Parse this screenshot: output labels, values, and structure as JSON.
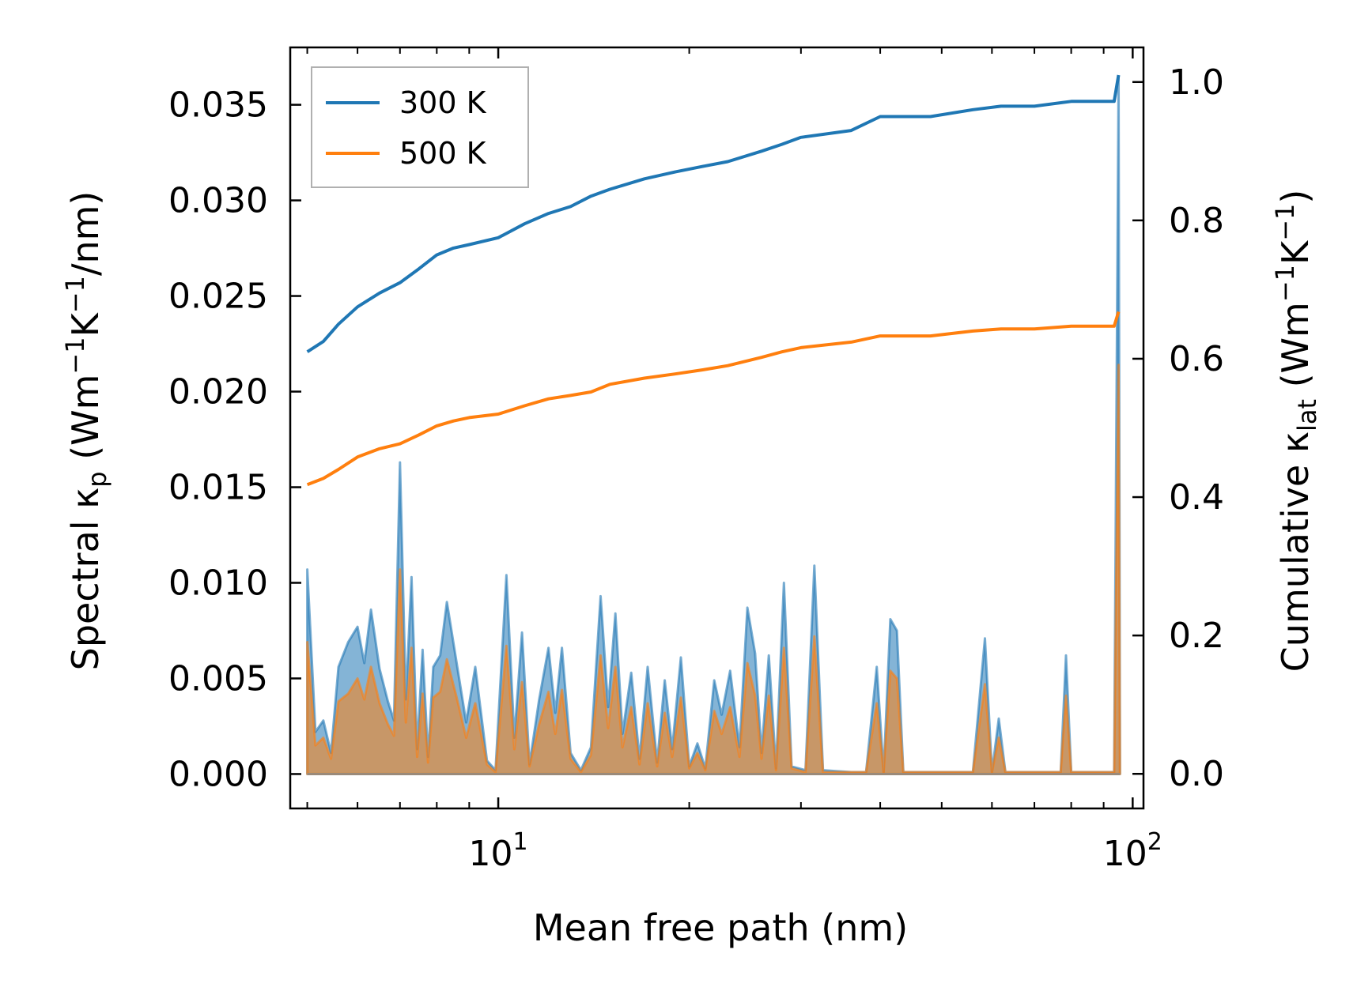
{
  "chart_data": {
    "type": "line",
    "x_scale": "log",
    "xlabel": "Mean free path (nm)",
    "ylabel_left": "Spectral κ_p (Wm^-1K^-1/nm)",
    "ylabel_right": "Cumulative κ_lat (Wm^-1K^-1)",
    "xlim": [
      4.7,
      104
    ],
    "ylim_left": [
      -0.0018,
      0.038
    ],
    "ylim_right": [
      -0.05,
      1.05
    ],
    "x_major_ticks": [
      {
        "value": 10,
        "base": "10",
        "exp": "1"
      },
      {
        "value": 100,
        "base": "10",
        "exp": "2"
      }
    ],
    "y_left_ticks": [
      {
        "value": 0.0,
        "label": "0.000"
      },
      {
        "value": 0.005,
        "label": "0.005"
      },
      {
        "value": 0.01,
        "label": "0.010"
      },
      {
        "value": 0.015,
        "label": "0.015"
      },
      {
        "value": 0.02,
        "label": "0.020"
      },
      {
        "value": 0.025,
        "label": "0.025"
      },
      {
        "value": 0.03,
        "label": "0.030"
      },
      {
        "value": 0.035,
        "label": "0.035"
      }
    ],
    "y_right_ticks": [
      {
        "value": 0.0,
        "label": "0.0"
      },
      {
        "value": 0.2,
        "label": "0.2"
      },
      {
        "value": 0.4,
        "label": "0.4"
      },
      {
        "value": 0.6,
        "label": "0.6"
      },
      {
        "value": 0.8,
        "label": "0.8"
      },
      {
        "value": 1.0,
        "label": "1.0"
      }
    ],
    "legend": {
      "position": "top-left",
      "entries": [
        "300 K",
        "500 K"
      ]
    },
    "series": [
      {
        "name": "300 K",
        "color": "#1f77b4",
        "cumulative": [
          [
            5.0,
            0.61
          ],
          [
            5.3,
            0.625
          ],
          [
            5.6,
            0.65
          ],
          [
            6.0,
            0.675
          ],
          [
            6.5,
            0.695
          ],
          [
            7.0,
            0.71
          ],
          [
            7.5,
            0.73
          ],
          [
            8.0,
            0.75
          ],
          [
            8.5,
            0.76
          ],
          [
            9.0,
            0.765
          ],
          [
            10.0,
            0.775
          ],
          [
            11.0,
            0.795
          ],
          [
            12.0,
            0.81
          ],
          [
            13.0,
            0.82
          ],
          [
            14.0,
            0.835
          ],
          [
            15.0,
            0.845
          ],
          [
            17.0,
            0.86
          ],
          [
            19.0,
            0.87
          ],
          [
            21.0,
            0.878
          ],
          [
            23.0,
            0.885
          ],
          [
            26.0,
            0.9
          ],
          [
            28.0,
            0.91
          ],
          [
            30.0,
            0.92
          ],
          [
            36.0,
            0.93
          ],
          [
            40.0,
            0.95
          ],
          [
            48.0,
            0.95
          ],
          [
            56.0,
            0.96
          ],
          [
            62.0,
            0.965
          ],
          [
            70.0,
            0.965
          ],
          [
            80.0,
            0.972
          ],
          [
            93.5,
            0.972
          ],
          [
            95.0,
            1.01
          ]
        ],
        "spectral": [
          [
            5.0,
            0.0107
          ],
          [
            5.15,
            0.0022
          ],
          [
            5.3,
            0.0028
          ],
          [
            5.45,
            0.0011
          ],
          [
            5.6,
            0.0056
          ],
          [
            5.8,
            0.0069
          ],
          [
            6.0,
            0.0077
          ],
          [
            6.15,
            0.0058
          ],
          [
            6.3,
            0.0086
          ],
          [
            6.5,
            0.0055
          ],
          [
            6.7,
            0.0038
          ],
          [
            6.85,
            0.0028
          ],
          [
            7.0,
            0.0163
          ],
          [
            7.15,
            0.0039
          ],
          [
            7.3,
            0.0103
          ],
          [
            7.45,
            0.0013
          ],
          [
            7.6,
            0.0065
          ],
          [
            7.75,
            0.0009
          ],
          [
            7.9,
            0.0056
          ],
          [
            8.1,
            0.0062
          ],
          [
            8.3,
            0.009
          ],
          [
            8.6,
            0.0058
          ],
          [
            8.9,
            0.0027
          ],
          [
            9.2,
            0.0056
          ],
          [
            9.6,
            0.0007
          ],
          [
            9.9,
            0.0002
          ],
          [
            10.3,
            0.0104
          ],
          [
            10.6,
            0.0019
          ],
          [
            10.9,
            0.0074
          ],
          [
            11.2,
            0.0005
          ],
          [
            11.6,
            0.0039
          ],
          [
            12.0,
            0.0066
          ],
          [
            12.3,
            0.0032
          ],
          [
            12.6,
            0.0066
          ],
          [
            13.0,
            0.0011
          ],
          [
            13.5,
            0.0002
          ],
          [
            14.0,
            0.0014
          ],
          [
            14.5,
            0.0093
          ],
          [
            14.9,
            0.0035
          ],
          [
            15.3,
            0.0084
          ],
          [
            15.7,
            0.0021
          ],
          [
            16.2,
            0.0053
          ],
          [
            16.7,
            0.0008
          ],
          [
            17.2,
            0.0056
          ],
          [
            17.8,
            0.0006
          ],
          [
            18.3,
            0.0049
          ],
          [
            18.8,
            0.0013
          ],
          [
            19.4,
            0.0061
          ],
          [
            20.0,
            0.0004
          ],
          [
            20.6,
            0.0016
          ],
          [
            21.2,
            0.0003
          ],
          [
            21.9,
            0.0049
          ],
          [
            22.5,
            0.0031
          ],
          [
            23.2,
            0.0054
          ],
          [
            24.0,
            0.0014
          ],
          [
            24.7,
            0.0087
          ],
          [
            25.4,
            0.0063
          ],
          [
            26.0,
            0.0011
          ],
          [
            26.7,
            0.0062
          ],
          [
            27.4,
            0.0003
          ],
          [
            28.2,
            0.01
          ],
          [
            29.0,
            0.0004
          ],
          [
            30.5,
            0.0002
          ],
          [
            31.5,
            0.0109
          ],
          [
            32.5,
            0.0002
          ],
          [
            36.0,
            0.0001
          ],
          [
            38.0,
            0.0001
          ],
          [
            39.5,
            0.0056
          ],
          [
            40.5,
            0.0001
          ],
          [
            41.5,
            0.0081
          ],
          [
            42.5,
            0.0075
          ],
          [
            43.5,
            0.0001
          ],
          [
            48.0,
            0.0001
          ],
          [
            56.0,
            0.0001
          ],
          [
            58.5,
            0.0071
          ],
          [
            60.0,
            0.0001
          ],
          [
            61.5,
            0.0029
          ],
          [
            63.0,
            0.0001
          ],
          [
            74.0,
            0.0001
          ],
          [
            77.0,
            0.0001
          ],
          [
            78.5,
            0.0062
          ],
          [
            80.0,
            0.0001
          ],
          [
            93.5,
            0.0001
          ],
          [
            95.0,
            0.0364
          ],
          [
            95.5,
            0.0001
          ]
        ]
      },
      {
        "name": "500 K",
        "color": "#ff7f0e",
        "cumulative": [
          [
            5.0,
            0.418
          ],
          [
            5.3,
            0.427
          ],
          [
            5.6,
            0.44
          ],
          [
            6.0,
            0.458
          ],
          [
            6.5,
            0.47
          ],
          [
            7.0,
            0.477
          ],
          [
            7.5,
            0.49
          ],
          [
            8.0,
            0.503
          ],
          [
            8.5,
            0.51
          ],
          [
            9.0,
            0.515
          ],
          [
            10.0,
            0.52
          ],
          [
            11.0,
            0.532
          ],
          [
            12.0,
            0.542
          ],
          [
            13.0,
            0.547
          ],
          [
            14.0,
            0.552
          ],
          [
            15.0,
            0.563
          ],
          [
            17.0,
            0.572
          ],
          [
            19.0,
            0.578
          ],
          [
            21.0,
            0.584
          ],
          [
            23.0,
            0.59
          ],
          [
            26.0,
            0.602
          ],
          [
            28.0,
            0.61
          ],
          [
            30.0,
            0.616
          ],
          [
            36.0,
            0.624
          ],
          [
            40.0,
            0.633
          ],
          [
            48.0,
            0.633
          ],
          [
            56.0,
            0.64
          ],
          [
            62.0,
            0.643
          ],
          [
            70.0,
            0.643
          ],
          [
            80.0,
            0.647
          ],
          [
            93.5,
            0.647
          ],
          [
            95.0,
            0.668
          ]
        ],
        "spectral": [
          [
            5.0,
            0.0069
          ],
          [
            5.15,
            0.0015
          ],
          [
            5.3,
            0.0019
          ],
          [
            5.45,
            0.0008
          ],
          [
            5.6,
            0.0038
          ],
          [
            5.8,
            0.0042
          ],
          [
            6.0,
            0.005
          ],
          [
            6.15,
            0.0039
          ],
          [
            6.3,
            0.0056
          ],
          [
            6.5,
            0.0037
          ],
          [
            6.7,
            0.0026
          ],
          [
            6.85,
            0.002
          ],
          [
            7.0,
            0.0107
          ],
          [
            7.15,
            0.0027
          ],
          [
            7.3,
            0.0066
          ],
          [
            7.45,
            0.0009
          ],
          [
            7.6,
            0.0042
          ],
          [
            7.75,
            0.0006
          ],
          [
            7.9,
            0.004
          ],
          [
            8.1,
            0.0043
          ],
          [
            8.3,
            0.006
          ],
          [
            8.6,
            0.004
          ],
          [
            8.9,
            0.0019
          ],
          [
            9.2,
            0.0037
          ],
          [
            9.6,
            0.0005
          ],
          [
            9.9,
            0.0001
          ],
          [
            10.3,
            0.0067
          ],
          [
            10.6,
            0.0013
          ],
          [
            10.9,
            0.0048
          ],
          [
            11.2,
            0.0004
          ],
          [
            11.6,
            0.0026
          ],
          [
            12.0,
            0.0043
          ],
          [
            12.3,
            0.0021
          ],
          [
            12.6,
            0.0044
          ],
          [
            13.0,
            0.0008
          ],
          [
            13.5,
            0.0001
          ],
          [
            14.0,
            0.001
          ],
          [
            14.5,
            0.0062
          ],
          [
            14.9,
            0.0024
          ],
          [
            15.3,
            0.0056
          ],
          [
            15.7,
            0.0014
          ],
          [
            16.2,
            0.0035
          ],
          [
            16.7,
            0.0005
          ],
          [
            17.2,
            0.0037
          ],
          [
            17.8,
            0.0004
          ],
          [
            18.3,
            0.0032
          ],
          [
            18.8,
            0.0009
          ],
          [
            19.4,
            0.004
          ],
          [
            20.0,
            0.0003
          ],
          [
            20.6,
            0.0011
          ],
          [
            21.2,
            0.0002
          ],
          [
            21.9,
            0.0033
          ],
          [
            22.5,
            0.0021
          ],
          [
            23.2,
            0.0035
          ],
          [
            24.0,
            0.0009
          ],
          [
            24.7,
            0.0058
          ],
          [
            25.4,
            0.0041
          ],
          [
            26.0,
            0.0008
          ],
          [
            26.7,
            0.0041
          ],
          [
            27.4,
            0.0002
          ],
          [
            28.2,
            0.0066
          ],
          [
            29.0,
            0.0003
          ],
          [
            30.5,
            0.0001
          ],
          [
            31.5,
            0.0072
          ],
          [
            32.5,
            0.0001
          ],
          [
            36.0,
            0.0001
          ],
          [
            38.0,
            0.0001
          ],
          [
            39.5,
            0.0037
          ],
          [
            40.5,
            0.0001
          ],
          [
            41.5,
            0.0054
          ],
          [
            42.5,
            0.005
          ],
          [
            43.5,
            0.0001
          ],
          [
            48.0,
            0.0001
          ],
          [
            56.0,
            0.0001
          ],
          [
            58.5,
            0.0047
          ],
          [
            60.0,
            0.0001
          ],
          [
            61.5,
            0.0019
          ],
          [
            63.0,
            0.0001
          ],
          [
            74.0,
            0.0001
          ],
          [
            77.0,
            0.0001
          ],
          [
            78.5,
            0.0041
          ],
          [
            80.0,
            0.0001
          ],
          [
            93.5,
            0.0001
          ],
          [
            95.0,
            0.0214
          ],
          [
            95.5,
            0.0001
          ]
        ]
      }
    ]
  },
  "labels": {
    "xlabel": "Mean free path (nm)",
    "ylabel_left_pre": "Spectral κ",
    "ylabel_left_sub": "p",
    "ylabel_left_mid1": " (Wm",
    "ylabel_left_sup1": "−1",
    "ylabel_left_mid2": "K",
    "ylabel_left_sup2": "−1",
    "ylabel_left_post": "/nm)",
    "ylabel_right_pre": "Cumulative κ",
    "ylabel_right_sub": "lat",
    "ylabel_right_mid1": " (Wm",
    "ylabel_right_sup1": "−1",
    "ylabel_right_mid2": "K",
    "ylabel_right_sup2": "−1",
    "ylabel_right_post": ")"
  }
}
